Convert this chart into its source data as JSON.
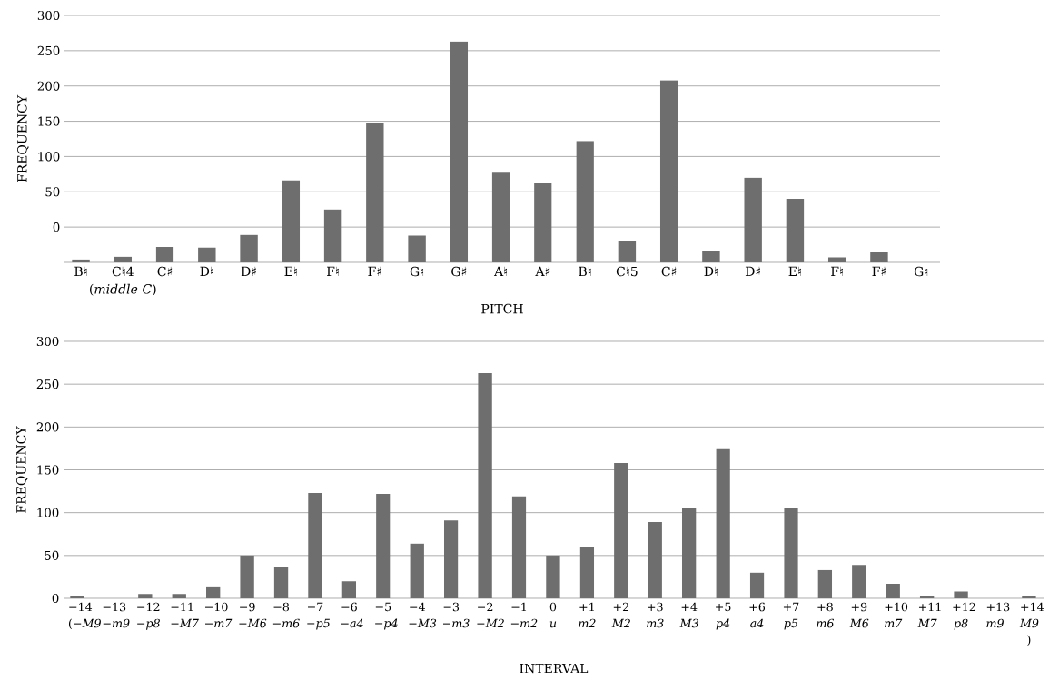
{
  "chart_data": [
    {
      "type": "bar",
      "xlabel": "PITCH",
      "ylabel": "FREQUENCY",
      "categories": [
        "B♮",
        "C♮4 (*middle C*)",
        "C♯",
        "D♮",
        "D♯",
        "E♮",
        "F♮",
        "F♯",
        "G♮",
        "G♯",
        "A♮",
        "A♯",
        "B♮",
        "C♮5",
        "C♯",
        "D♮",
        "D♯",
        "E♮",
        "F♮",
        "F♯",
        "G♮"
      ],
      "values": [
        4,
        8,
        22,
        21,
        39,
        116,
        75,
        197,
        38,
        313,
        127,
        112,
        172,
        30,
        258,
        16,
        120,
        90,
        7,
        14,
        null
      ],
      "base": [
        -50,
        -50,
        -50,
        -50,
        -50,
        -50,
        -50,
        -50,
        -50,
        -50,
        -50,
        -50,
        -50,
        -50,
        -50,
        -50,
        -50,
        -50,
        -50,
        -50,
        null
      ],
      "color": "#6e6e6e",
      "ylim": [
        -50,
        300
      ],
      "yticks": [
        0,
        50,
        100,
        150,
        200,
        250,
        300
      ],
      "grid": "y"
    },
    {
      "type": "bar",
      "xlabel": "INTERVAL",
      "ylabel": "FREQUENCY",
      "categories": [
        "−14 (*−M9*",
        "−13 *−m9*",
        "−12 *−p8*",
        "−11 *−M7*",
        "−10 *−m7*",
        "−9 *−M6*",
        "−8 *−m6*",
        "−7 *−p5*",
        "−6 *−a4*",
        "−5 *−p4*",
        "−4 *−M3*",
        "−3 *−m3*",
        "−2 *−M2*",
        "−1 *−m2*",
        "0 *u*",
        "+1 *m2*",
        "+2 *M2*",
        "+3 *m3*",
        "+4 *M3*",
        "+5 *p4*",
        "+6 *a4*",
        "+7 *p5*",
        "+8 *m6*",
        "+9 *M6*",
        "+10 *m7*",
        "+11 *M7*",
        "+12 *p8*",
        "+13 *m9*",
        "+14 *M9* )"
      ],
      "values": [
        2,
        0,
        5,
        5,
        13,
        50,
        36,
        123,
        20,
        122,
        64,
        91,
        263,
        119,
        50,
        60,
        158,
        89,
        105,
        174,
        30,
        106,
        33,
        39,
        17,
        2,
        8,
        0,
        2
      ],
      "color": "#6e6e6e",
      "ylim": [
        0,
        300
      ],
      "yticks": [
        0,
        50,
        100,
        150,
        200,
        250,
        300
      ],
      "grid": "y"
    }
  ]
}
